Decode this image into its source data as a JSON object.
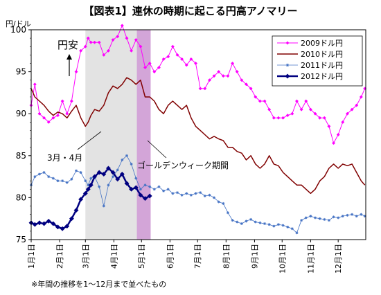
{
  "chart_data": {
    "type": "line",
    "title": "【図表1】連休の時期に起こる円高アノマリー",
    "ylabel": "円/ドル",
    "ylim": [
      75,
      100
    ],
    "yticks": [
      75,
      80,
      85,
      90,
      95,
      100
    ],
    "grid": false,
    "legend_position": "top-right",
    "categories": [
      "1月1日",
      "2月1日",
      "3月1日",
      "4月1日",
      "5月1日",
      "6月1日",
      "7月1日",
      "8月1日",
      "9月1日",
      "10月1日",
      "11月1日",
      "12月1日"
    ],
    "x_unit": "day of year (1 = Jan 1)",
    "bands": [
      {
        "label": "3月・4月",
        "from": 60,
        "to": 120,
        "color": "#e3e3e3"
      },
      {
        "label": "ゴールデンウィーク期間",
        "from": 116,
        "to": 131,
        "color": "#d3a5d8"
      }
    ],
    "annotations": [
      {
        "text": "円安"
      },
      {
        "text": "3月・4月"
      },
      {
        "text": "ゴールデンウィーク期間"
      }
    ],
    "footnote": "※年間の推移を1～12月まで並べたもの",
    "series": [
      {
        "name": "2009ドル円",
        "color": "#ff00ff",
        "marker": "diamond",
        "x": [
          1,
          5,
          10,
          15,
          20,
          25,
          30,
          35,
          40,
          45,
          50,
          55,
          60,
          63,
          66,
          70,
          75,
          80,
          85,
          90,
          95,
          100,
          105,
          110,
          115,
          120,
          125,
          130,
          135,
          140,
          145,
          150,
          155,
          160,
          165,
          170,
          175,
          180,
          185,
          190,
          195,
          200,
          205,
          210,
          215,
          220,
          225,
          230,
          235,
          240,
          245,
          250,
          255,
          260,
          265,
          270,
          275,
          280,
          285,
          290,
          295,
          300,
          305,
          310,
          315,
          320,
          325,
          330,
          335,
          340,
          345,
          350,
          355,
          360,
          364
        ],
        "y": [
          91.0,
          93.5,
          90.0,
          89.5,
          89.0,
          89.5,
          89.8,
          91.5,
          90.0,
          91.5,
          95.0,
          97.5,
          98.0,
          99.0,
          98.5,
          98.5,
          98.5,
          97.0,
          97.5,
          98.8,
          99.2,
          100.5,
          99.0,
          97.5,
          98.8,
          98.0,
          95.5,
          96.0,
          95.0,
          95.5,
          96.5,
          96.8,
          98.0,
          97.0,
          96.5,
          95.8,
          96.5,
          96.0,
          93.0,
          93.0,
          94.0,
          94.5,
          95.0,
          94.5,
          94.5,
          96.0,
          95.0,
          94.0,
          93.5,
          93.0,
          92.0,
          91.5,
          91.5,
          90.5,
          89.5,
          89.5,
          89.5,
          89.8,
          90.0,
          91.5,
          90.5,
          91.5,
          90.5,
          90.0,
          89.5,
          89.5,
          88.5,
          86.5,
          87.5,
          89.0,
          90.0,
          90.5,
          91.0,
          92.0,
          93.0
        ]
      },
      {
        "name": "2010ドル円",
        "color": "#800000",
        "marker": "none",
        "x": [
          1,
          5,
          10,
          15,
          20,
          25,
          30,
          35,
          40,
          45,
          50,
          55,
          60,
          63,
          66,
          70,
          75,
          80,
          85,
          90,
          95,
          100,
          105,
          110,
          115,
          120,
          125,
          130,
          135,
          140,
          145,
          150,
          155,
          160,
          165,
          170,
          175,
          180,
          185,
          190,
          195,
          200,
          205,
          210,
          215,
          220,
          225,
          230,
          235,
          240,
          245,
          250,
          255,
          260,
          265,
          270,
          275,
          280,
          285,
          290,
          295,
          300,
          305,
          310,
          315,
          320,
          325,
          330,
          335,
          340,
          345,
          350,
          355,
          360,
          364
        ],
        "y": [
          93.0,
          92.0,
          91.5,
          91.0,
          90.3,
          89.8,
          90.2,
          90.0,
          89.5,
          90.3,
          91.0,
          89.5,
          88.5,
          89.0,
          89.8,
          90.5,
          90.3,
          91.0,
          92.5,
          93.3,
          93.0,
          93.5,
          94.3,
          94.0,
          93.5,
          94.0,
          92.0,
          92.0,
          91.5,
          90.5,
          90.0,
          91.0,
          91.5,
          91.0,
          90.5,
          91.0,
          89.5,
          88.5,
          88.0,
          87.5,
          87.0,
          87.3,
          87.0,
          86.8,
          86.0,
          86.0,
          85.5,
          85.3,
          84.5,
          85.0,
          84.0,
          83.5,
          84.0,
          85.0,
          84.0,
          83.8,
          83.0,
          82.5,
          82.0,
          81.5,
          81.5,
          81.0,
          80.5,
          81.0,
          82.0,
          82.5,
          83.5,
          84.0,
          83.5,
          84.0,
          83.8,
          84.0,
          83.0,
          82.0,
          81.5
        ]
      },
      {
        "name": "2011ドル円",
        "color": "#4472c4",
        "marker": "star",
        "x": [
          1,
          5,
          10,
          15,
          20,
          25,
          30,
          35,
          40,
          45,
          50,
          55,
          60,
          63,
          66,
          70,
          75,
          80,
          85,
          90,
          95,
          100,
          105,
          110,
          115,
          120,
          125,
          130,
          135,
          140,
          145,
          150,
          155,
          160,
          165,
          170,
          175,
          180,
          185,
          190,
          195,
          200,
          205,
          210,
          215,
          220,
          225,
          230,
          235,
          240,
          245,
          250,
          255,
          260,
          265,
          270,
          275,
          280,
          285,
          290,
          295,
          300,
          305,
          310,
          315,
          320,
          325,
          330,
          335,
          340,
          345,
          350,
          355,
          360,
          364
        ],
        "y": [
          81.5,
          82.5,
          82.8,
          83.0,
          82.5,
          82.3,
          82.0,
          82.0,
          81.8,
          82.2,
          83.2,
          83.0,
          82.0,
          81.5,
          82.3,
          82.5,
          81.3,
          79.0,
          81.5,
          82.5,
          83.3,
          84.5,
          85.0,
          84.0,
          82.3,
          81.0,
          81.5,
          81.3,
          81.0,
          81.3,
          80.8,
          81.0,
          80.5,
          80.6,
          80.3,
          80.5,
          80.3,
          80.5,
          80.6,
          80.2,
          80.3,
          80.0,
          79.5,
          79.3,
          78.2,
          77.3,
          77.1,
          76.9,
          77.2,
          77.4,
          77.1,
          77.0,
          76.9,
          76.8,
          76.6,
          76.8,
          76.7,
          76.5,
          76.3,
          75.8,
          77.3,
          77.6,
          77.8,
          77.6,
          77.5,
          77.4,
          77.3,
          77.7,
          77.6,
          77.8,
          77.9,
          78.0,
          77.8,
          78.0,
          77.8
        ]
      },
      {
        "name": "2012ドル円",
        "color": "#000080",
        "marker": "diamond",
        "x": [
          1,
          5,
          10,
          15,
          20,
          25,
          30,
          35,
          40,
          45,
          50,
          55,
          60,
          63,
          66,
          70,
          75,
          80,
          85,
          90,
          95,
          100,
          105,
          110,
          115,
          120,
          125,
          130
        ],
        "y": [
          77.0,
          76.8,
          77.0,
          76.9,
          77.2,
          76.9,
          76.5,
          76.3,
          76.6,
          77.5,
          78.5,
          79.8,
          80.5,
          81.0,
          81.5,
          82.5,
          83.0,
          82.8,
          83.5,
          83.0,
          82.2,
          82.8,
          81.7,
          81.0,
          81.2,
          80.3,
          79.9,
          80.2
        ]
      }
    ]
  }
}
